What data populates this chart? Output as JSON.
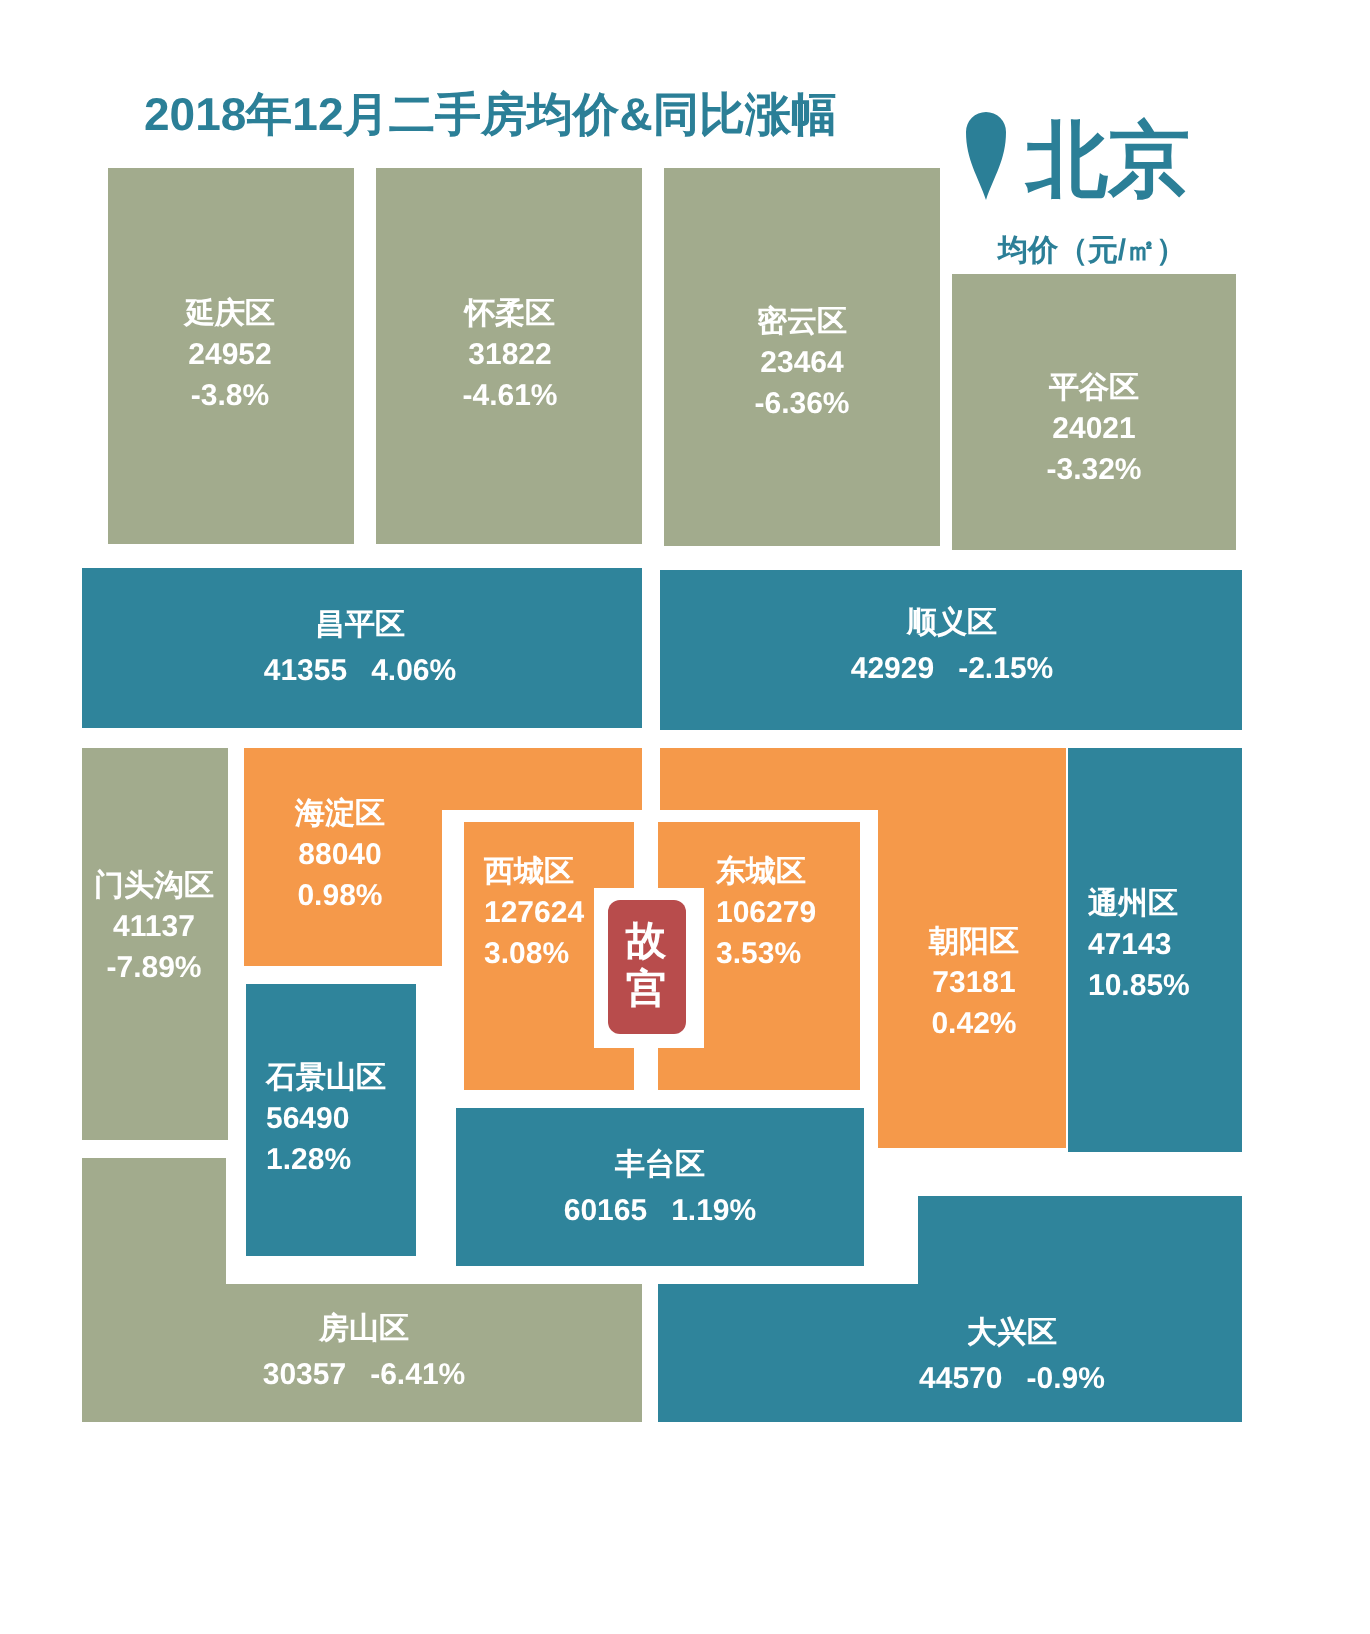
{
  "chart_data": {
    "type": "other",
    "title": "2018年12月二手房均价&同比涨幅",
    "subtitle": "北京",
    "annotations": [
      "均价（元/㎡）"
    ],
    "categories": [
      "延庆区",
      "怀柔区",
      "密云区",
      "平谷区",
      "昌平区",
      "顺义区",
      "门头沟区",
      "海淀区",
      "西城区",
      "东城区",
      "朝阳区",
      "通州区",
      "石景山区",
      "丰台区",
      "房山区",
      "大兴区",
      "故宫"
    ],
    "series": [
      {
        "values": [
          24952,
          31822,
          23464,
          24021,
          41355,
          42929,
          41137,
          88040,
          127624,
          106279,
          73181,
          47143,
          56490,
          60165,
          30357,
          44570,
          null
        ],
        "colors": [
          "#a2ab8d",
          "#a2ab8d",
          "#a2ab8d",
          "#a2ab8d",
          "#2f849b",
          "#2f849b",
          "#a2ab8d",
          "#f5994a",
          "#f5994a",
          "#f5994a",
          "#f5994a",
          "#2f849b",
          "#2f849b",
          "#2f849b",
          "#a2ab8d",
          "#2f849b",
          "#b84c4c"
        ]
      },
      {
        "values": [
          -3.8,
          -4.61,
          -6.36,
          -3.32,
          4.06,
          -2.15,
          -7.89,
          0.98,
          3.08,
          3.53,
          0.42,
          10.85,
          1.28,
          1.19,
          -6.41,
          -0.9,
          null
        ],
        "value_labels": [
          "-3.8%",
          "-4.61%",
          "-6.36%",
          "-3.32%",
          "4.06%",
          "-2.15%",
          "-7.89%",
          "0.98%",
          "3.08%",
          "3.53%",
          "0.42%",
          "10.85%",
          "1.28%",
          "1.19%",
          "-6.41%",
          "-0.9%",
          null
        ]
      }
    ],
    "data_labels": true
  }
}
